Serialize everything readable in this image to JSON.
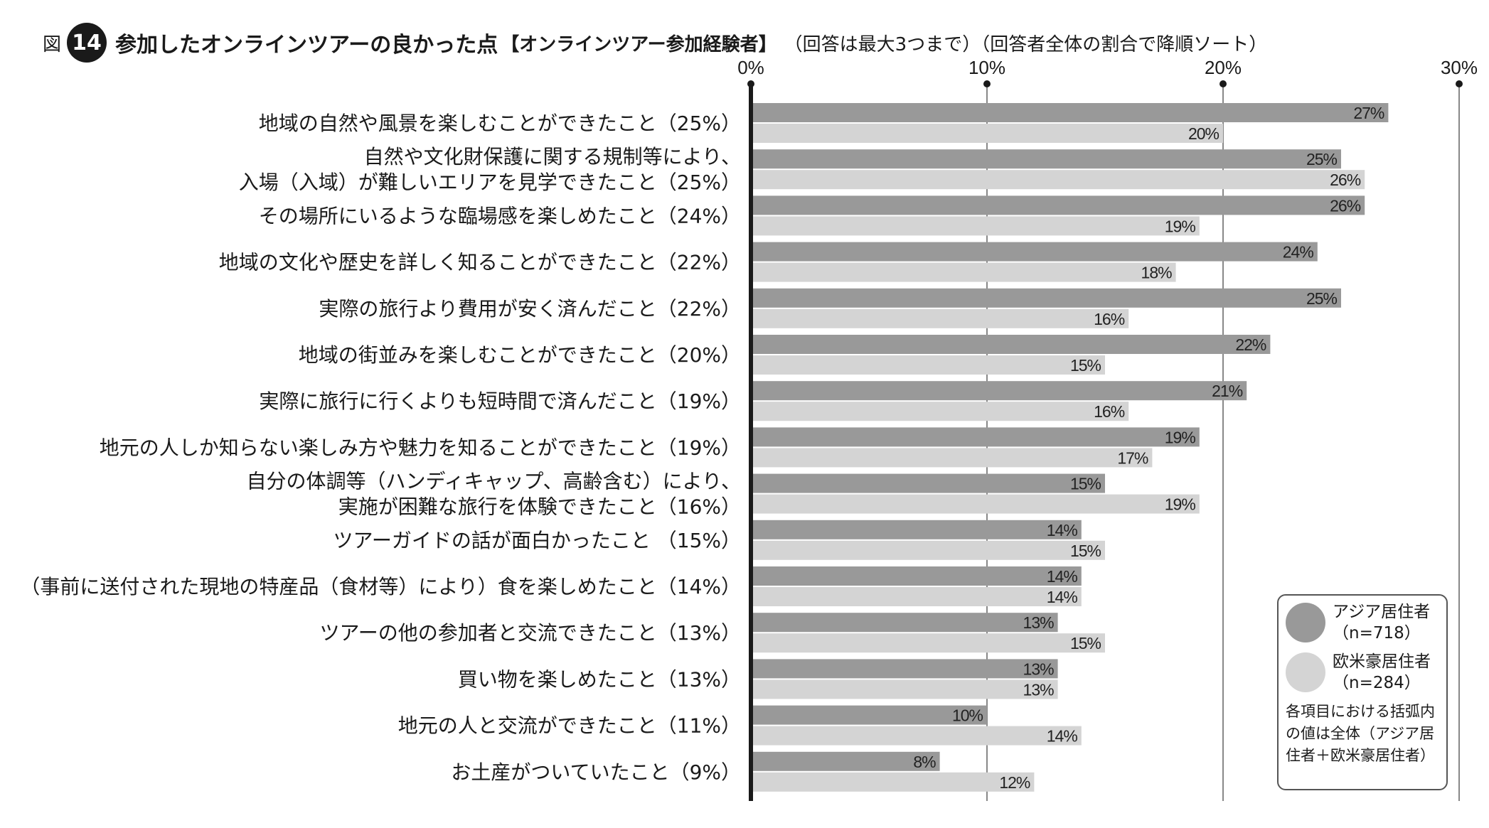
{
  "header": {
    "fig_prefix": "図",
    "fig_number": "14",
    "title": "参加したオンラインツアーの良かった点",
    "bracket": "【オンラインツアー参加経験者】",
    "note": "（回答は最大3つまで）（回答者全体の割合で降順ソート）"
  },
  "colors": {
    "asia": "#999999",
    "west": "#d4d4d4",
    "axis": "#1a1a1a",
    "grid": "#555555"
  },
  "legend": {
    "asia_label": "アジア居住者",
    "asia_n": "（n=718）",
    "west_label": "欧米豪居住者",
    "west_n": "（n=284）",
    "note": "各項目における括弧内の値は全体（アジア居住者＋欧米豪居住者）"
  },
  "chart_data": {
    "type": "bar",
    "orientation": "horizontal",
    "xlim": [
      0,
      30
    ],
    "ticks": [
      "0%",
      "10%",
      "20%",
      "30%"
    ],
    "tick_values": [
      0,
      10,
      20,
      30
    ],
    "grid": true,
    "categories": [
      [
        "地域の自然や風景を楽しむことができたこと（25%）"
      ],
      [
        "自然や文化財保護に関する規制等により、",
        "入場（入域）が難しいエリアを見学できたこと（25%）"
      ],
      [
        "その場所にいるような臨場感を楽しめたこと（24%）"
      ],
      [
        "地域の文化や歴史を詳しく知ることができたこと（22%）"
      ],
      [
        "実際の旅行より費用が安く済んだこと（22%）"
      ],
      [
        "地域の街並みを楽しむことができたこと（20%）"
      ],
      [
        "実際に旅行に行くよりも短時間で済んだこと（19%）"
      ],
      [
        "地元の人しか知らない楽しみ方や魅力を知ることができたこと（19%）"
      ],
      [
        "自分の体調等（ハンディキャップ、高齢含む）により、",
        "実施が困難な旅行を体験できたこと（16%）"
      ],
      [
        "ツアーガイドの話が面白かったこと （15%）"
      ],
      [
        "（事前に送付された現地の特産品（食材等）により）食を楽しめたこと（14%）"
      ],
      [
        "ツアーの他の参加者と交流できたこと（13%）"
      ],
      [
        "買い物を楽しめたこと（13%）"
      ],
      [
        "地元の人と交流ができたこと（11%）"
      ],
      [
        "お土産がついていたこと（9%）"
      ]
    ],
    "series": [
      {
        "name": "アジア居住者",
        "values": [
          27,
          25,
          26,
          24,
          25,
          22,
          21,
          19,
          15,
          14,
          14,
          13,
          13,
          10,
          8
        ]
      },
      {
        "name": "欧米豪居住者",
        "values": [
          20,
          26,
          19,
          18,
          16,
          15,
          16,
          17,
          19,
          15,
          14,
          15,
          13,
          14,
          12
        ]
      }
    ],
    "value_suffix": "%"
  }
}
